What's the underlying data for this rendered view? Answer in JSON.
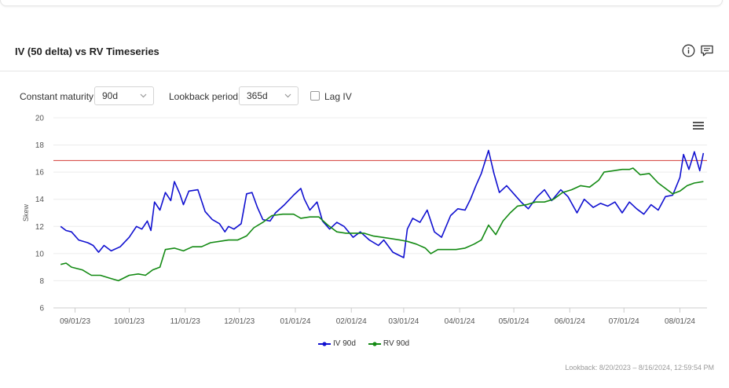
{
  "header": {
    "title": "IV (50 delta) vs RV Timeseries"
  },
  "controls": {
    "maturity_label": "Constant maturity",
    "maturity_value": "90d",
    "lookback_label": "Lookback period",
    "lookback_value": "365d",
    "lag_label": "Lag IV",
    "lag_checked": false
  },
  "chart_data": {
    "type": "line",
    "xlabel": "",
    "ylabel": "Skew",
    "ylim": [
      6,
      20
    ],
    "yticks": [
      "6",
      "8",
      "10",
      "12",
      "14",
      "16",
      "18",
      "20"
    ],
    "xlim": [
      "2023-08-20",
      "2024-08-16"
    ],
    "xticks": [
      {
        "date": "2023-09-01",
        "label": "09/01/23"
      },
      {
        "date": "2023-10-01",
        "label": "10/01/23"
      },
      {
        "date": "2023-11-01",
        "label": "11/01/23"
      },
      {
        "date": "2023-12-01",
        "label": "12/01/23"
      },
      {
        "date": "2024-01-01",
        "label": "01/01/24"
      },
      {
        "date": "2024-02-01",
        "label": "02/01/24"
      },
      {
        "date": "2024-03-01",
        "label": "03/01/24"
      },
      {
        "date": "2024-04-01",
        "label": "04/01/24"
      },
      {
        "date": "2024-05-01",
        "label": "05/01/24"
      },
      {
        "date": "2024-06-01",
        "label": "06/01/24"
      },
      {
        "date": "2024-07-01",
        "label": "07/01/24"
      },
      {
        "date": "2024-08-01",
        "label": "08/01/24"
      }
    ],
    "grid": "horizontal",
    "reference_line": {
      "y": 16.85,
      "color": "#d9534f"
    },
    "series": [
      {
        "name": "IV 90d",
        "color": "#1010d0",
        "points": [
          [
            "2023-08-24",
            12.0
          ],
          [
            "2023-08-27",
            11.7
          ],
          [
            "2023-08-30",
            11.6
          ],
          [
            "2023-09-03",
            11.0
          ],
          [
            "2023-09-08",
            10.8
          ],
          [
            "2023-09-11",
            10.6
          ],
          [
            "2023-09-14",
            10.1
          ],
          [
            "2023-09-17",
            10.6
          ],
          [
            "2023-09-21",
            10.2
          ],
          [
            "2023-09-26",
            10.5
          ],
          [
            "2023-10-01",
            11.2
          ],
          [
            "2023-10-05",
            12.0
          ],
          [
            "2023-10-08",
            11.8
          ],
          [
            "2023-10-11",
            12.4
          ],
          [
            "2023-10-13",
            11.7
          ],
          [
            "2023-10-15",
            13.8
          ],
          [
            "2023-10-18",
            13.2
          ],
          [
            "2023-10-21",
            14.5
          ],
          [
            "2023-10-24",
            13.9
          ],
          [
            "2023-10-26",
            15.3
          ],
          [
            "2023-10-29",
            14.4
          ],
          [
            "2023-10-31",
            13.6
          ],
          [
            "2023-11-03",
            14.6
          ],
          [
            "2023-11-08",
            14.7
          ],
          [
            "2023-11-12",
            13.1
          ],
          [
            "2023-11-16",
            12.5
          ],
          [
            "2023-11-20",
            12.2
          ],
          [
            "2023-11-23",
            11.6
          ],
          [
            "2023-11-25",
            12.0
          ],
          [
            "2023-11-28",
            11.8
          ],
          [
            "2023-12-02",
            12.2
          ],
          [
            "2023-12-05",
            14.4
          ],
          [
            "2023-12-08",
            14.5
          ],
          [
            "2023-12-11",
            13.4
          ],
          [
            "2023-12-14",
            12.5
          ],
          [
            "2023-12-18",
            12.4
          ],
          [
            "2023-12-21",
            13.0
          ],
          [
            "2023-12-26",
            13.6
          ],
          [
            "2023-12-31",
            14.3
          ],
          [
            "2024-01-04",
            14.8
          ],
          [
            "2024-01-06",
            14.0
          ],
          [
            "2024-01-09",
            13.2
          ],
          [
            "2024-01-13",
            13.8
          ],
          [
            "2024-01-16",
            12.4
          ],
          [
            "2024-01-20",
            11.8
          ],
          [
            "2024-01-24",
            12.3
          ],
          [
            "2024-01-28",
            12.0
          ],
          [
            "2024-02-02",
            11.2
          ],
          [
            "2024-02-06",
            11.6
          ],
          [
            "2024-02-11",
            11.0
          ],
          [
            "2024-02-16",
            10.6
          ],
          [
            "2024-02-19",
            11.0
          ],
          [
            "2024-02-24",
            10.1
          ],
          [
            "2024-03-01",
            9.7
          ],
          [
            "2024-03-03",
            11.8
          ],
          [
            "2024-03-06",
            12.6
          ],
          [
            "2024-03-10",
            12.3
          ],
          [
            "2024-03-14",
            13.2
          ],
          [
            "2024-03-18",
            11.6
          ],
          [
            "2024-03-22",
            11.2
          ],
          [
            "2024-03-27",
            12.8
          ],
          [
            "2024-03-31",
            13.3
          ],
          [
            "2024-04-04",
            13.2
          ],
          [
            "2024-04-07",
            14.0
          ],
          [
            "2024-04-10",
            15.0
          ],
          [
            "2024-04-13",
            15.9
          ],
          [
            "2024-04-17",
            17.6
          ],
          [
            "2024-04-20",
            15.9
          ],
          [
            "2024-04-23",
            14.5
          ],
          [
            "2024-04-27",
            15.0
          ],
          [
            "2024-05-01",
            14.4
          ],
          [
            "2024-05-05",
            13.8
          ],
          [
            "2024-05-09",
            13.3
          ],
          [
            "2024-05-14",
            14.2
          ],
          [
            "2024-05-18",
            14.7
          ],
          [
            "2024-05-22",
            13.9
          ],
          [
            "2024-05-27",
            14.7
          ],
          [
            "2024-05-31",
            14.2
          ],
          [
            "2024-06-05",
            13.0
          ],
          [
            "2024-06-09",
            14.0
          ],
          [
            "2024-06-14",
            13.4
          ],
          [
            "2024-06-18",
            13.7
          ],
          [
            "2024-06-22",
            13.5
          ],
          [
            "2024-06-26",
            13.8
          ],
          [
            "2024-06-30",
            13.0
          ],
          [
            "2024-07-04",
            13.8
          ],
          [
            "2024-07-08",
            13.3
          ],
          [
            "2024-07-12",
            12.9
          ],
          [
            "2024-07-16",
            13.6
          ],
          [
            "2024-07-20",
            13.2
          ],
          [
            "2024-07-24",
            14.2
          ],
          [
            "2024-07-28",
            14.3
          ],
          [
            "2024-08-01",
            15.6
          ],
          [
            "2024-08-03",
            17.3
          ],
          [
            "2024-08-06",
            16.2
          ],
          [
            "2024-08-09",
            17.5
          ],
          [
            "2024-08-12",
            16.1
          ],
          [
            "2024-08-14",
            17.4
          ]
        ]
      },
      {
        "name": "RV 90d",
        "color": "#138a13",
        "points": [
          [
            "2023-08-24",
            9.2
          ],
          [
            "2023-08-27",
            9.3
          ],
          [
            "2023-08-30",
            9.0
          ],
          [
            "2023-09-05",
            8.8
          ],
          [
            "2023-09-10",
            8.4
          ],
          [
            "2023-09-15",
            8.4
          ],
          [
            "2023-09-20",
            8.2
          ],
          [
            "2023-09-25",
            8.0
          ],
          [
            "2023-10-01",
            8.4
          ],
          [
            "2023-10-06",
            8.5
          ],
          [
            "2023-10-10",
            8.4
          ],
          [
            "2023-10-14",
            8.8
          ],
          [
            "2023-10-18",
            9.0
          ],
          [
            "2023-10-21",
            10.3
          ],
          [
            "2023-10-26",
            10.4
          ],
          [
            "2023-10-31",
            10.2
          ],
          [
            "2023-11-05",
            10.5
          ],
          [
            "2023-11-10",
            10.5
          ],
          [
            "2023-11-15",
            10.8
          ],
          [
            "2023-11-20",
            10.9
          ],
          [
            "2023-11-25",
            11.0
          ],
          [
            "2023-11-30",
            11.0
          ],
          [
            "2023-12-05",
            11.3
          ],
          [
            "2023-12-09",
            11.9
          ],
          [
            "2023-12-14",
            12.3
          ],
          [
            "2023-12-19",
            12.8
          ],
          [
            "2023-12-25",
            12.9
          ],
          [
            "2023-12-31",
            12.9
          ],
          [
            "2024-01-04",
            12.6
          ],
          [
            "2024-01-09",
            12.7
          ],
          [
            "2024-01-14",
            12.7
          ],
          [
            "2024-01-19",
            12.1
          ],
          [
            "2024-01-24",
            11.6
          ],
          [
            "2024-01-29",
            11.5
          ],
          [
            "2024-02-03",
            11.5
          ],
          [
            "2024-02-08",
            11.5
          ],
          [
            "2024-02-13",
            11.3
          ],
          [
            "2024-02-18",
            11.2
          ],
          [
            "2024-02-23",
            11.1
          ],
          [
            "2024-02-28",
            11.0
          ],
          [
            "2024-03-03",
            10.9
          ],
          [
            "2024-03-08",
            10.7
          ],
          [
            "2024-03-13",
            10.4
          ],
          [
            "2024-03-16",
            10.0
          ],
          [
            "2024-03-20",
            10.3
          ],
          [
            "2024-03-25",
            10.3
          ],
          [
            "2024-03-30",
            10.3
          ],
          [
            "2024-04-04",
            10.4
          ],
          [
            "2024-04-09",
            10.7
          ],
          [
            "2024-04-13",
            11.0
          ],
          [
            "2024-04-17",
            12.1
          ],
          [
            "2024-04-21",
            11.4
          ],
          [
            "2024-04-25",
            12.4
          ],
          [
            "2024-04-29",
            13.0
          ],
          [
            "2024-05-03",
            13.5
          ],
          [
            "2024-05-08",
            13.6
          ],
          [
            "2024-05-13",
            13.8
          ],
          [
            "2024-05-18",
            13.8
          ],
          [
            "2024-05-23",
            14.0
          ],
          [
            "2024-05-28",
            14.5
          ],
          [
            "2024-06-02",
            14.7
          ],
          [
            "2024-06-07",
            15.0
          ],
          [
            "2024-06-12",
            14.9
          ],
          [
            "2024-06-17",
            15.4
          ],
          [
            "2024-06-20",
            16.0
          ],
          [
            "2024-06-25",
            16.1
          ],
          [
            "2024-06-30",
            16.2
          ],
          [
            "2024-07-04",
            16.2
          ],
          [
            "2024-07-06",
            16.3
          ],
          [
            "2024-07-10",
            15.8
          ],
          [
            "2024-07-15",
            15.9
          ],
          [
            "2024-07-20",
            15.2
          ],
          [
            "2024-07-24",
            14.8
          ],
          [
            "2024-07-28",
            14.4
          ],
          [
            "2024-08-01",
            14.6
          ],
          [
            "2024-08-05",
            15.0
          ],
          [
            "2024-08-09",
            15.2
          ],
          [
            "2024-08-14",
            15.3
          ]
        ]
      }
    ]
  },
  "footer": {
    "note": "Lookback: 8/20/2023 – 8/16/2024, 12:59:54 PM"
  }
}
